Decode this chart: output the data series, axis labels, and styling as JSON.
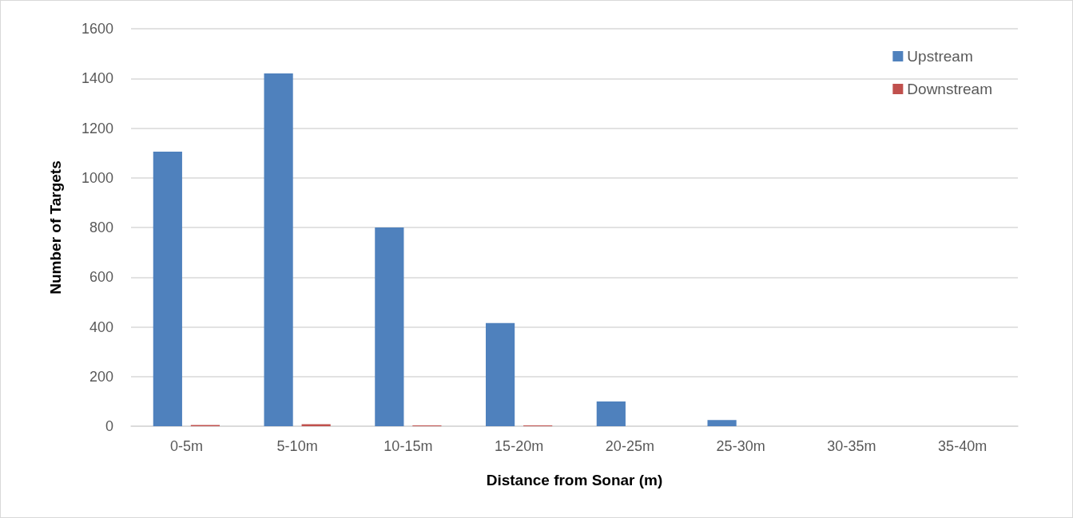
{
  "chart_data": {
    "type": "bar",
    "xlabel": "Distance from Sonar (m)",
    "ylabel": "Number of Targets",
    "categories": [
      "0-5m",
      "5-10m",
      "10-15m",
      "15-20m",
      "20-25m",
      "25-30m",
      "30-35m",
      "35-40m"
    ],
    "series": [
      {
        "name": "Upstream",
        "color": "#4f81bd",
        "values": [
          1105,
          1420,
          800,
          415,
          100,
          25,
          0,
          0
        ]
      },
      {
        "name": "Downstream",
        "color": "#c0504d",
        "values": [
          5,
          8,
          3,
          3,
          0,
          0,
          0,
          0
        ]
      }
    ],
    "ylim": [
      0,
      1600
    ],
    "yticks": [
      0,
      200,
      400,
      600,
      800,
      1000,
      1200,
      1400,
      1600
    ],
    "grid": "y",
    "legend": "top right"
  }
}
